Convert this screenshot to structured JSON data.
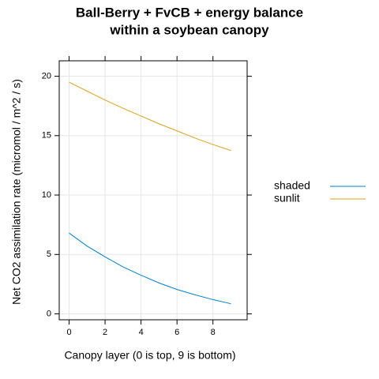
{
  "chart_data": {
    "type": "line",
    "title": [
      "Ball-Berry + FvCB + energy balance",
      "within a soybean canopy"
    ],
    "x_label": "Canopy layer (0 is top, 9 is bottom)",
    "y_label": "Net CO2 assimilation rate (micromol / m^2 / s)",
    "x": [
      0,
      1,
      2,
      3,
      4,
      5,
      6,
      7,
      8,
      9
    ],
    "series": [
      {
        "name": "shaded",
        "color": "#0080c8",
        "values": [
          6.8,
          5.7,
          4.8,
          3.95,
          3.25,
          2.6,
          2.05,
          1.6,
          1.2,
          0.85
        ]
      },
      {
        "name": "sunlit",
        "color": "#d9a21b",
        "values": [
          19.5,
          18.75,
          18.0,
          17.3,
          16.65,
          16.0,
          15.4,
          14.8,
          14.25,
          13.75
        ]
      }
    ],
    "xlim": [
      -0.55,
      9.9
    ],
    "xticks": [
      0,
      2,
      4,
      6,
      8
    ],
    "ylim": [
      -0.5,
      21.3
    ],
    "yticks": [
      0,
      5,
      10,
      15,
      20
    ],
    "grid": true,
    "legend": "right"
  }
}
